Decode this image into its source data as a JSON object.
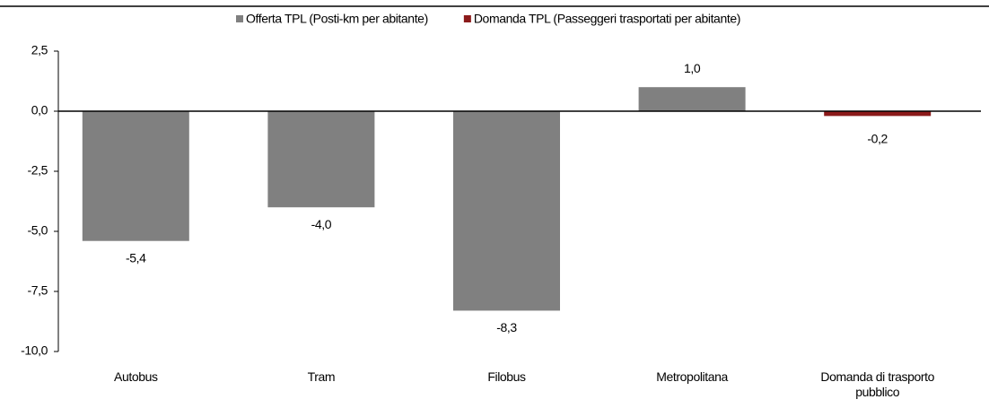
{
  "chart_data": {
    "type": "bar",
    "categories": [
      "Autobus",
      "Tram",
      "Filobus",
      "Metropolitana",
      "Domanda di trasporto pubblico"
    ],
    "series": [
      {
        "name": "Offerta TPL (Posti-km per abitante)",
        "color": "#808080",
        "values": [
          -5.4,
          -4.0,
          -8.3,
          1.0,
          null
        ],
        "value_labels": [
          "-5,4",
          "-4,0",
          "-8,3",
          "1,0",
          null
        ]
      },
      {
        "name": "Domanda TPL (Passeggeri trasportati per abitante)",
        "color": "#8b1a1a",
        "values": [
          null,
          null,
          null,
          null,
          -0.2
        ],
        "value_labels": [
          null,
          null,
          null,
          null,
          "-0,2"
        ]
      }
    ],
    "ylim": [
      -10,
      2.5
    ],
    "yticks": [
      {
        "value": -10,
        "label": "-10,0"
      },
      {
        "value": -7.5,
        "label": "-7,5"
      },
      {
        "value": -5,
        "label": "-5,0"
      },
      {
        "value": -2.5,
        "label": "-2,5"
      },
      {
        "value": 0,
        "label": "0,0"
      },
      {
        "value": 2.5,
        "label": "2,5"
      }
    ],
    "grid": false,
    "legend": "top"
  }
}
